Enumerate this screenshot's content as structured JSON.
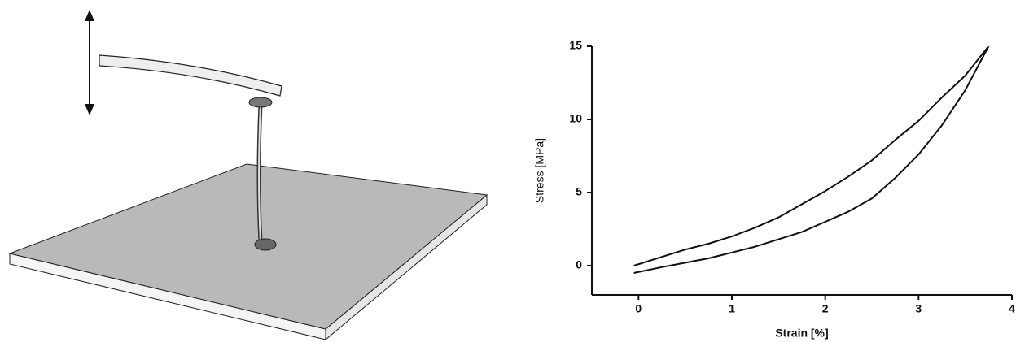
{
  "chart_data": {
    "type": "line",
    "x_label": "Strain [%]",
    "y_label": "Stress [MPa]",
    "x": [
      -0.05,
      0.25,
      0.5,
      0.75,
      1,
      1.25,
      1.5,
      1.75,
      2,
      2.25,
      2.5,
      2.75,
      3,
      3.25,
      3.5,
      3.75
    ],
    "series": [
      {
        "color": "#111111",
        "values": [
          0,
          0.6,
          1.1,
          1.5,
          2.0,
          2.6,
          3.3,
          4.2,
          5.1,
          6.1,
          7.2,
          8.6,
          9.9,
          11.5,
          13.0,
          15.0
        ]
      },
      {
        "color": "#111111",
        "values": [
          -0.5,
          -0.1,
          0.2,
          0.5,
          0.9,
          1.3,
          1.8,
          2.3,
          3.0,
          3.7,
          4.6,
          6.0,
          7.6,
          9.6,
          12.0,
          15.0
        ]
      }
    ],
    "xlim": [
      -0.5,
      4
    ],
    "xticks": [
      0,
      1,
      2,
      3,
      4
    ],
    "ylim": [
      -2,
      15
    ],
    "yticks": [
      0,
      5,
      10,
      15
    ],
    "grid": false
  }
}
